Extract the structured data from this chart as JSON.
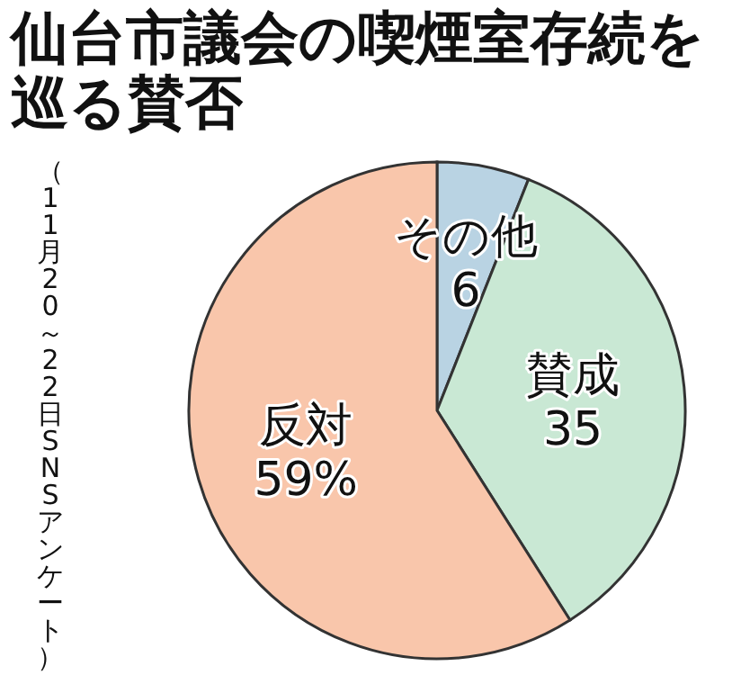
{
  "chart_data": {
    "type": "pie",
    "title": "仙台市議会の喫煙室存続を巡る賛否",
    "categories": [
      "その他",
      "賛成",
      "反対"
    ],
    "values": [
      6,
      35,
      59
    ],
    "value_labels": [
      "6",
      "35",
      "59%"
    ],
    "colors": [
      "#b9d3e3",
      "#c9e8d4",
      "#f9c6ab"
    ],
    "annotations": [
      "（11月20～22日SNSアンケート）"
    ]
  }
}
